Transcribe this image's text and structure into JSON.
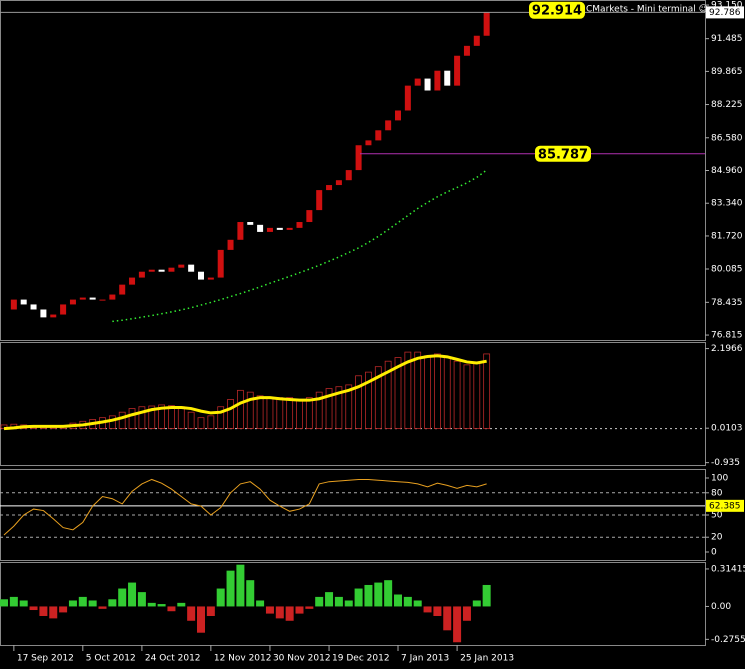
{
  "chart_data": [
    {
      "type": "candlestick",
      "header": "CMarkets - Mini terminal ☺",
      "categories": [
        null,
        "17 Sep 2012",
        null,
        null,
        null,
        null,
        null,
        null,
        "5 Oct 2012",
        null,
        null,
        null,
        null,
        null,
        "24 Oct 2012",
        null,
        null,
        null,
        null,
        null,
        null,
        "12 Nov 2012",
        null,
        null,
        null,
        null,
        null,
        "30 Nov 2012",
        null,
        null,
        null,
        null,
        null,
        "19 Dec 2012",
        null,
        null,
        null,
        null,
        null,
        null,
        "7 Jan 2013",
        null,
        null,
        null,
        null,
        null,
        "25 Jan 2013",
        null,
        null,
        null
      ],
      "values": [
        78.08,
        78.57,
        78.33,
        78.08,
        77.69,
        77.83,
        78.33,
        78.57,
        78.67,
        78.57,
        78.57,
        78.82,
        79.31,
        79.66,
        79.95,
        80.05,
        79.95,
        80.15,
        80.3,
        79.95,
        79.56,
        79.66,
        81.03,
        81.53,
        82.41,
        82.27,
        81.92,
        82.12,
        82.02,
        82.12,
        82.41,
        83.0,
        83.99,
        84.24,
        84.48,
        84.98,
        86.21,
        86.45,
        86.95,
        87.44,
        87.93,
        89.16,
        89.51,
        88.92,
        89.9,
        89.16,
        90.64,
        91.13,
        91.63,
        92.786
      ],
      "up_color": "#d01010",
      "down_color": "#ffffff",
      "overlay": {
        "color": "#33ee33",
        "values": [
          null,
          null,
          null,
          null,
          null,
          null,
          null,
          null,
          null,
          null,
          null,
          77.49,
          77.55,
          77.62,
          77.7,
          77.78,
          77.87,
          77.96,
          78.06,
          78.17,
          78.3,
          78.43,
          78.57,
          78.72,
          78.87,
          79.03,
          79.2,
          79.38,
          79.55,
          79.72,
          79.9,
          80.08,
          80.27,
          80.47,
          80.68,
          80.9,
          81.13,
          81.4,
          81.7,
          82.03,
          82.38,
          82.73,
          83.08,
          83.38,
          83.66,
          83.9,
          84.12,
          84.35,
          84.62,
          84.98
        ]
      },
      "hline": {
        "value": 85.787,
        "color": "#b030b0"
      },
      "callout": 92.914,
      "last_price": 92.786,
      "ylim": [
        76.57,
        93.35
      ],
      "yticks": [
        {
          "value": 93.15,
          "label": "93.150"
        },
        91.485,
        89.865,
        88.225,
        {
          "value": 86.58,
          "label": "86.580"
        },
        {
          "value": 84.96,
          "label": "84.960"
        },
        {
          "value": 83.34,
          "label": "83.340"
        },
        {
          "value": 81.72,
          "label": "81.720"
        },
        80.085,
        78.435,
        76.815
      ]
    },
    {
      "type": "bar_line",
      "values": [
        0.1,
        0.12,
        0.1,
        0.08,
        0.05,
        0.05,
        0.08,
        0.15,
        0.2,
        0.25,
        0.3,
        0.35,
        0.45,
        0.55,
        0.6,
        0.62,
        0.65,
        0.63,
        0.6,
        0.45,
        0.3,
        0.35,
        0.6,
        0.8,
        1.05,
        1.0,
        0.9,
        0.85,
        0.85,
        0.85,
        0.8,
        0.85,
        1.0,
        1.1,
        1.15,
        1.2,
        1.45,
        1.55,
        1.7,
        1.85,
        1.95,
        2.1,
        2.1,
        2.0,
        2.05,
        1.95,
        1.85,
        1.75,
        1.8,
        2.05
      ],
      "color": "#b82828",
      "line": {
        "color": "#ffee00",
        "values": [
          0.0,
          0.02,
          0.05,
          0.06,
          0.06,
          0.06,
          0.06,
          0.08,
          0.1,
          0.14,
          0.18,
          0.23,
          0.3,
          0.38,
          0.45,
          0.52,
          0.56,
          0.58,
          0.58,
          0.55,
          0.48,
          0.43,
          0.45,
          0.55,
          0.7,
          0.8,
          0.85,
          0.85,
          0.82,
          0.8,
          0.78,
          0.78,
          0.82,
          0.9,
          0.98,
          1.05,
          1.15,
          1.28,
          1.42,
          1.56,
          1.7,
          1.83,
          1.93,
          1.98,
          2.0,
          1.97,
          1.9,
          1.83,
          1.8,
          1.85
        ]
      },
      "ylim": [
        -1.0,
        2.35
      ],
      "yticks": [
        2.1966,
        0.0103,
        -0.935
      ]
    },
    {
      "type": "line",
      "values": [
        23,
        35,
        50,
        58,
        56,
        45,
        33,
        30,
        40,
        62,
        75,
        72,
        65,
        82,
        92,
        98,
        93,
        85,
        75,
        65,
        62,
        50,
        60,
        80,
        92,
        95,
        85,
        70,
        62,
        55,
        58,
        65,
        92,
        95,
        96,
        97,
        98,
        98,
        97,
        96,
        95,
        94,
        92,
        88,
        93,
        90,
        86,
        90,
        88,
        92
      ],
      "color": "#e8a020",
      "level": 62.385,
      "ylim": [
        -10.8,
        110.8
      ],
      "yticks": [
        100,
        80,
        50,
        20,
        0
      ]
    },
    {
      "type": "bar_pn",
      "values": [
        0.06,
        0.08,
        0.05,
        -0.03,
        -0.08,
        -0.1,
        -0.05,
        0.05,
        0.08,
        0.05,
        -0.02,
        0.06,
        0.15,
        0.2,
        0.12,
        0.03,
        0.02,
        -0.04,
        0.03,
        -0.12,
        -0.22,
        -0.08,
        0.15,
        0.3,
        0.35,
        0.22,
        0.05,
        -0.06,
        -0.1,
        -0.12,
        -0.06,
        -0.02,
        0.08,
        0.12,
        0.08,
        0.05,
        0.15,
        0.18,
        0.2,
        0.22,
        0.1,
        0.08,
        0.05,
        -0.05,
        -0.08,
        -0.2,
        -0.3,
        -0.12,
        0.05,
        0.18
      ],
      "pos_color": "#33cc33",
      "neg_color": "#cc2222",
      "ylim": [
        -0.323,
        0.364
      ],
      "yticks": [
        0.31415,
        {
          "value": 0,
          "label": "0.00"
        },
        -0.27553
      ]
    }
  ]
}
